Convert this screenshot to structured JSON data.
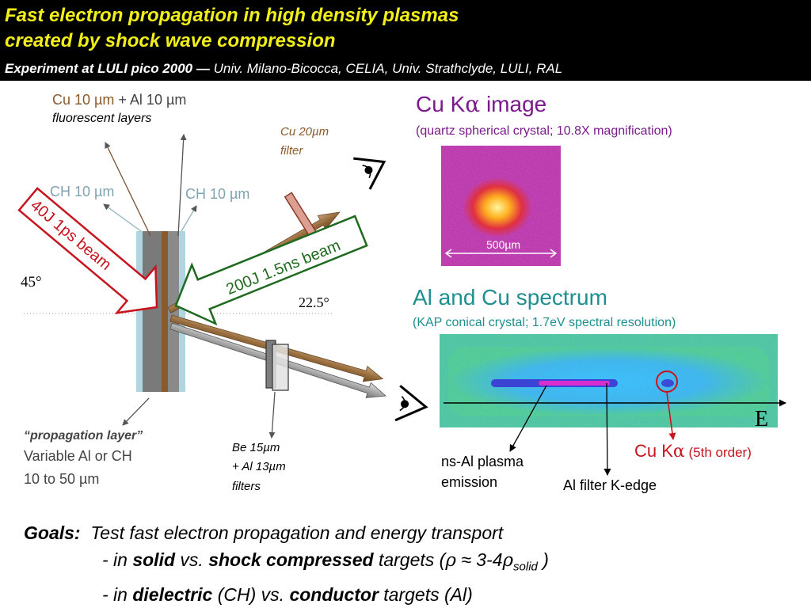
{
  "header": {
    "title_line1": "Fast electron propagation in high density plasmas",
    "title_line2": "created by shock wave compression",
    "experiment_bold": "Experiment at LULI pico 2000 —",
    "experiment_rest": " Univ. Milano-Bicocca, CELIA, Univ. Strathclyde, LULI, RAL"
  },
  "labels": {
    "cu_al_a": "Cu 10 µm",
    "cu_al_b": " + Al 10 µm",
    "fluorescent": "fluorescent layers",
    "ch_left": "CH 10 µm",
    "ch_right": "CH 10 µm",
    "cu_filter_1": "Cu 20µm",
    "cu_filter_2": "filter",
    "beam_40j": "40J 1ps beam",
    "beam_200j": "200J 1.5ns beam",
    "angle_45": "45°",
    "angle_225": "22.5°",
    "propagation_layer": "“propagation layer”",
    "variable": "Variable Al or CH",
    "thickness": "10 to 50 µm",
    "be_1": "Be 15µm",
    "be_2": "+ Al 13µm",
    "be_3": "filters"
  },
  "image_panel": {
    "title_a": "Cu K",
    "title_greek": "α",
    "title_b": " image",
    "subtitle": "(quartz spherical crystal; 10.8X magnification)",
    "scale": "500µm"
  },
  "spectrum_panel": {
    "title": "Al and Cu spectrum",
    "subtitle": "(KAP conical crystal; 1.7eV spectral resolution)",
    "axis_label": "E",
    "ns_al_1": "ns-Al plasma",
    "ns_al_2": "emission",
    "edge": "Al filter K-edge",
    "cu_a": "Cu K",
    "cu_greek": "α",
    "cu_order": " (5th order)"
  },
  "goals": {
    "label": "Goals:",
    "line1": "Test fast electron propagation and energy transport",
    "l2_a": "- in ",
    "l2_solid": "solid",
    "l2_b": " vs. ",
    "l2_shock": "shock compressed",
    "l2_c": " targets (",
    "l2_rho": "ρ",
    "l2_approx": " ≈ 3-4",
    "l2_rho2": "ρ",
    "l2_sub": "solid",
    "l2_d": " )",
    "l3_a": "- in ",
    "l3_dielectric": "dielectric",
    "l3_b": " (CH) vs. ",
    "l3_conductor": "conductor",
    "l3_c": " targets (Al)"
  },
  "colors": {
    "header_title": "#f2ee1a",
    "cu_brown": "#8b5a2b",
    "ch_blue": "#7fa3b0",
    "beam_red": "#c8141e",
    "beam_green": "#1e6a1e",
    "image_purple": "#7a1a8c",
    "spectrum_teal": "#1f8f90"
  }
}
